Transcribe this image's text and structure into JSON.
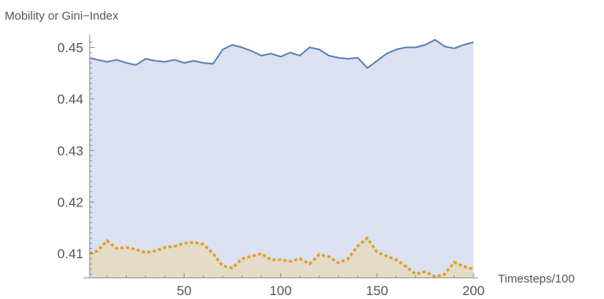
{
  "chart_data": {
    "type": "area",
    "xlabel": "Timesteps/100",
    "ylabel": "Mobility or Gini−Index",
    "xlim": [
      1,
      200
    ],
    "ylim": [
      0.4053,
      0.4525
    ],
    "x_ticks": [
      50,
      100,
      150,
      200
    ],
    "y_ticks": [
      0.41,
      0.42,
      0.43,
      0.44,
      0.45
    ],
    "colors": {
      "series1": "#5b7fb4",
      "series1_fill": "#dbe1f0",
      "series2": "#e09f2b",
      "series2_fill": "#e4dcc8",
      "axis": "#888888"
    },
    "series": [
      {
        "style": "solid",
        "x": [
          1,
          5,
          10,
          15,
          20,
          25,
          30,
          35,
          40,
          45,
          50,
          55,
          60,
          65,
          70,
          75,
          80,
          85,
          90,
          95,
          100,
          105,
          110,
          115,
          120,
          125,
          130,
          135,
          140,
          145,
          150,
          155,
          160,
          165,
          170,
          175,
          180,
          185,
          190,
          195,
          200
        ],
        "values": [
          0.448,
          0.4476,
          0.4472,
          0.4476,
          0.447,
          0.4466,
          0.4478,
          0.4474,
          0.4472,
          0.4476,
          0.447,
          0.4474,
          0.447,
          0.4468,
          0.4496,
          0.4505,
          0.45,
          0.4493,
          0.4484,
          0.4488,
          0.4482,
          0.449,
          0.4484,
          0.45,
          0.4496,
          0.4484,
          0.448,
          0.4478,
          0.448,
          0.446,
          0.4474,
          0.4488,
          0.4496,
          0.45,
          0.45,
          0.4505,
          0.4515,
          0.4502,
          0.4498,
          0.4505,
          0.451
        ]
      },
      {
        "style": "dotted",
        "x": [
          1,
          5,
          10,
          15,
          20,
          25,
          30,
          35,
          40,
          45,
          50,
          55,
          60,
          65,
          70,
          75,
          80,
          85,
          90,
          95,
          100,
          105,
          110,
          115,
          120,
          125,
          130,
          135,
          140,
          145,
          150,
          155,
          160,
          165,
          170,
          175,
          180,
          185,
          190,
          195,
          200
        ],
        "values": [
          0.41,
          0.4105,
          0.4125,
          0.411,
          0.4112,
          0.4108,
          0.4102,
          0.4105,
          0.4112,
          0.4114,
          0.412,
          0.4122,
          0.4118,
          0.41,
          0.4076,
          0.4072,
          0.409,
          0.4095,
          0.41,
          0.4088,
          0.4088,
          0.4085,
          0.409,
          0.408,
          0.4098,
          0.4094,
          0.4082,
          0.409,
          0.4115,
          0.413,
          0.4103,
          0.4095,
          0.4088,
          0.4075,
          0.406,
          0.4065,
          0.4055,
          0.406,
          0.4083,
          0.4075,
          0.407
        ]
      }
    ]
  }
}
